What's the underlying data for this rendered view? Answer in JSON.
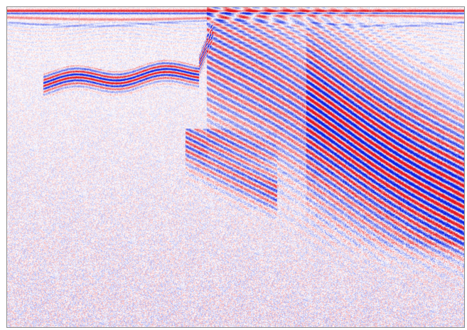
{
  "image": {
    "kind": "seismic-section",
    "colormap": {
      "negative": "#0a1ee0",
      "zero": "#ffffff",
      "positive": "#e0141e"
    },
    "frame_color": "#8a8a8a",
    "background": "#ffffff"
  }
}
